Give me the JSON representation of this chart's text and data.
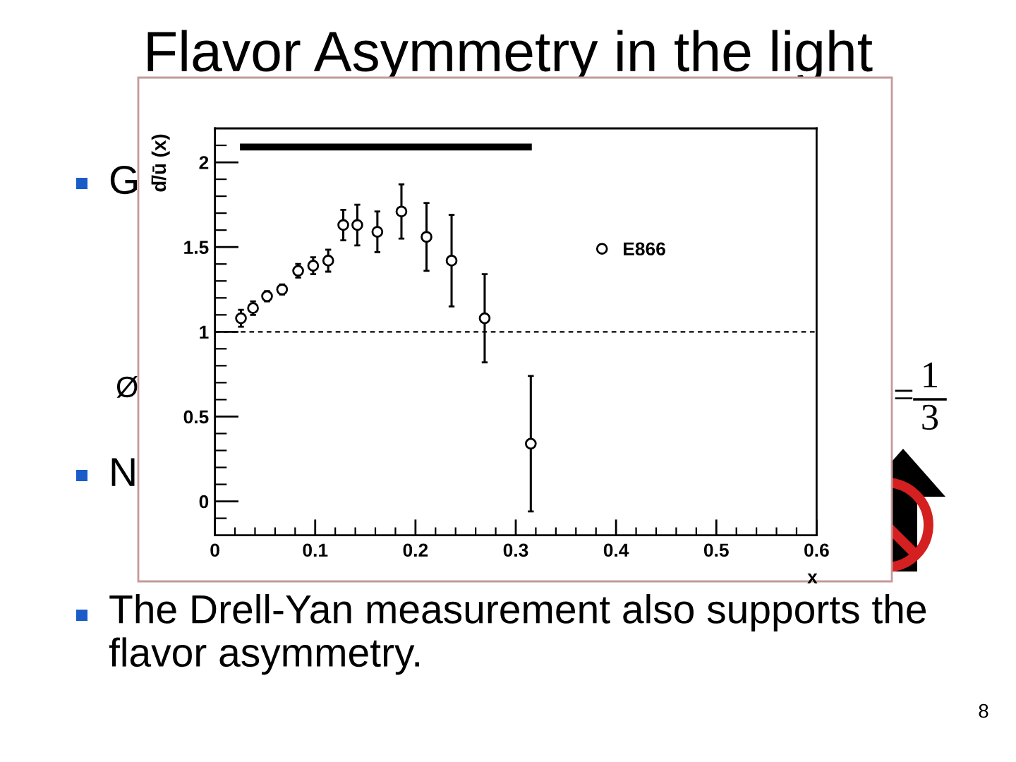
{
  "chart_data": {
    "type": "scatter",
    "title": "Flavor Asymmetry in the light",
    "xlabel": "x",
    "ylabel": "d̄/ū (x)",
    "xlim": [
      0,
      0.6
    ],
    "ylim": [
      -0.2,
      2.2
    ],
    "xticks": [
      0,
      {
        "value": 0.02,
        "label": null
      },
      {
        "value": 0.04,
        "label": null
      },
      {
        "value": 0.06,
        "label": null
      },
      {
        "value": 0.08,
        "label": null
      },
      0.1,
      {
        "value": 0.12,
        "label": null
      },
      {
        "value": 0.14,
        "label": null
      },
      {
        "value": 0.16,
        "label": null
      },
      {
        "value": 0.18,
        "label": null
      },
      0.2,
      {
        "value": 0.22,
        "label": null
      },
      {
        "value": 0.24,
        "label": null
      },
      {
        "value": 0.26,
        "label": null
      },
      {
        "value": 0.28,
        "label": null
      },
      0.3,
      {
        "value": 0.32,
        "label": null
      },
      {
        "value": 0.34,
        "label": null
      },
      {
        "value": 0.36,
        "label": null
      },
      {
        "value": 0.38,
        "label": null
      },
      0.4,
      {
        "value": 0.42,
        "label": null
      },
      {
        "value": 0.44,
        "label": null
      },
      {
        "value": 0.46,
        "label": null
      },
      {
        "value": 0.48,
        "label": null
      },
      0.5,
      {
        "value": 0.52,
        "label": null
      },
      {
        "value": 0.54,
        "label": null
      },
      {
        "value": 0.56,
        "label": null
      },
      {
        "value": 0.58,
        "label": null
      },
      0.6
    ],
    "yticks": [
      {
        "value": -0.1,
        "label": null
      },
      0,
      {
        "value": 0.1,
        "label": null
      },
      {
        "value": 0.2,
        "label": null
      },
      {
        "value": 0.3,
        "label": null
      },
      {
        "value": 0.4,
        "label": null
      },
      0.5,
      {
        "value": 0.6,
        "label": null
      },
      {
        "value": 0.7,
        "label": null
      },
      {
        "value": 0.8,
        "label": null
      },
      {
        "value": 0.9,
        "label": null
      },
      1,
      {
        "value": 1.1,
        "label": null
      },
      {
        "value": 1.2,
        "label": null
      },
      {
        "value": 1.3,
        "label": null
      },
      {
        "value": 1.4,
        "label": null
      },
      1.5,
      {
        "value": 1.6,
        "label": null
      },
      {
        "value": 1.7,
        "label": null
      },
      {
        "value": 1.8,
        "label": null
      },
      {
        "value": 1.9,
        "label": null
      },
      2,
      {
        "value": 2.1,
        "label": null
      }
    ],
    "legend": "top right",
    "ref_lines": [
      {
        "axis": "y",
        "value": 1,
        "line_style": "dashed",
        "color": "#000000"
      }
    ],
    "annotations": [
      "G",
      "Ø",
      "N",
      "=",
      "1",
      "3",
      "The Drell-Yan measurement also supports the flavor asymmetry.",
      "8"
    ],
    "series": [
      {
        "name": "E866",
        "marker": "circle",
        "color": "#000000",
        "x": [
          0.026,
          0.038,
          0.052,
          0.067,
          0.083,
          0.098,
          0.113,
          0.128,
          0.142,
          0.162,
          0.186,
          0.211,
          0.236,
          0.269,
          0.315
        ],
        "values": [
          1.08,
          1.14,
          1.21,
          1.25,
          1.36,
          1.39,
          1.42,
          1.63,
          1.63,
          1.59,
          1.71,
          1.56,
          1.42,
          1.08,
          0.34
        ],
        "errors": [
          0.05,
          0.04,
          0.03,
          0.03,
          0.04,
          0.05,
          0.065,
          0.09,
          0.12,
          0.12,
          0.16,
          0.2,
          0.27,
          0.26,
          0.4
        ]
      },
      {
        "type": "line",
        "color": "#000000",
        "x": [
          0.025,
          0.316
        ],
        "values": [
          2.09,
          2.09
        ]
      }
    ]
  }
}
